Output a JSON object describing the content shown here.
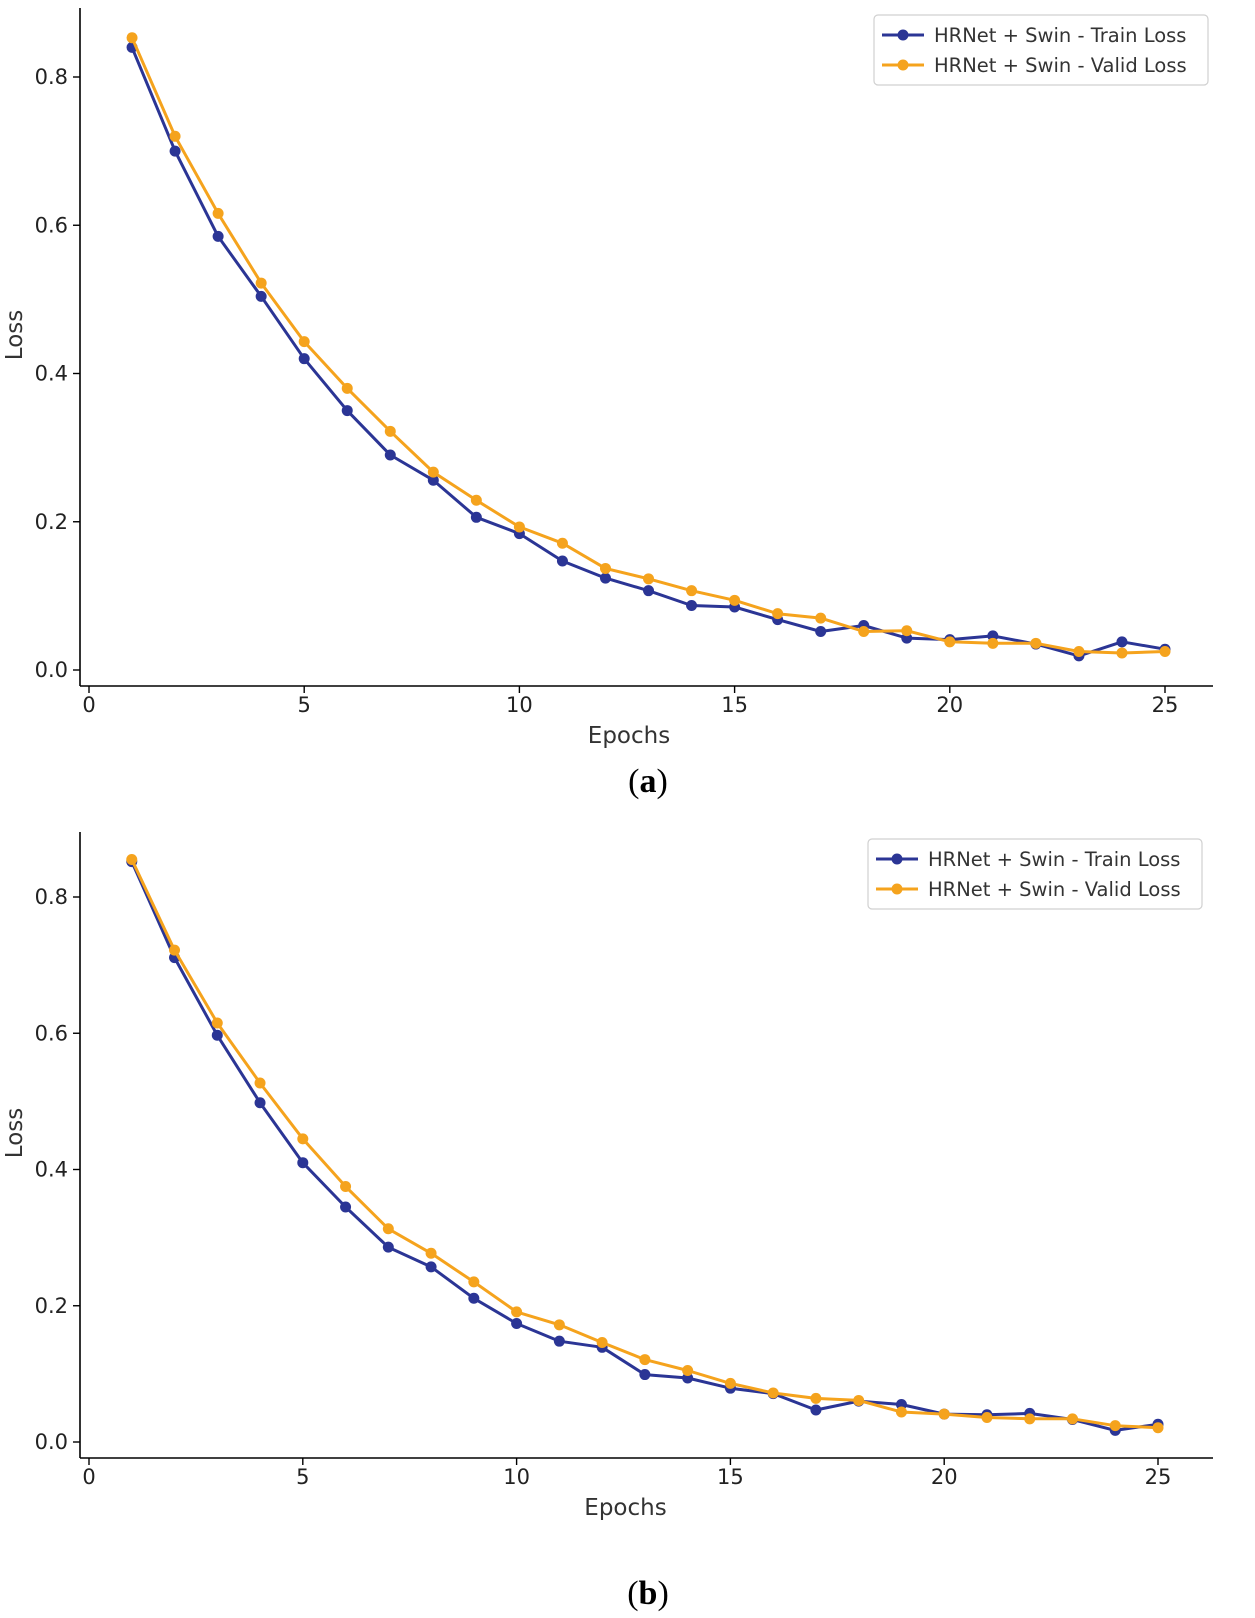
{
  "colors": {
    "train": "#2b3595",
    "valid": "#f5a31d",
    "axis": "#000000"
  },
  "chart_data": [
    {
      "type": "line",
      "panel": "a",
      "caption": "a",
      "xlabel": "Epochs",
      "ylabel": "Loss",
      "xlim": [
        -0.2,
        26
      ],
      "ylim": [
        -0.02,
        0.9
      ],
      "xticks": [
        0,
        5,
        10,
        15,
        20,
        25
      ],
      "yticks": [
        0.0,
        0.2,
        0.4,
        0.6,
        0.8
      ],
      "legend_position": "top-right",
      "x": [
        1,
        2,
        3,
        4,
        5,
        6,
        7,
        8,
        9,
        10,
        11,
        12,
        13,
        14,
        15,
        16,
        17,
        18,
        19,
        20,
        21,
        22,
        23,
        24,
        25
      ],
      "series": [
        {
          "name": "HRNet + Swin - Train Loss",
          "color_key": "train",
          "values": [
            0.84,
            0.7,
            0.585,
            0.504,
            0.42,
            0.35,
            0.29,
            0.256,
            0.206,
            0.184,
            0.147,
            0.124,
            0.107,
            0.087,
            0.085,
            0.068,
            0.052,
            0.06,
            0.043,
            0.041,
            0.046,
            0.035,
            0.019,
            0.038,
            0.028
          ]
        },
        {
          "name": "HRNet + Swin - Valid Loss",
          "color_key": "valid",
          "values": [
            0.853,
            0.72,
            0.616,
            0.522,
            0.443,
            0.38,
            0.322,
            0.267,
            0.229,
            0.193,
            0.171,
            0.137,
            0.123,
            0.107,
            0.094,
            0.076,
            0.07,
            0.052,
            0.053,
            0.038,
            0.036,
            0.036,
            0.025,
            0.023,
            0.025
          ]
        }
      ]
    },
    {
      "type": "line",
      "panel": "b",
      "caption": "b",
      "xlabel": "Epochs",
      "ylabel": "Loss",
      "xlim": [
        -0.2,
        26
      ],
      "ylim": [
        -0.02,
        0.9
      ],
      "xticks": [
        0,
        5,
        10,
        15,
        20,
        25
      ],
      "yticks": [
        0.0,
        0.2,
        0.4,
        0.6,
        0.8
      ],
      "legend_position": "top-right",
      "x": [
        1,
        2,
        3,
        4,
        5,
        6,
        7,
        8,
        9,
        10,
        11,
        12,
        13,
        14,
        15,
        16,
        17,
        18,
        19,
        20,
        21,
        22,
        23,
        24,
        25
      ],
      "series": [
        {
          "name": "HRNet + Swin - Train Loss",
          "color_key": "train",
          "values": [
            0.852,
            0.711,
            0.597,
            0.498,
            0.41,
            0.345,
            0.286,
            0.257,
            0.211,
            0.174,
            0.148,
            0.139,
            0.099,
            0.094,
            0.079,
            0.071,
            0.047,
            0.06,
            0.055,
            0.041,
            0.04,
            0.042,
            0.033,
            0.017,
            0.026
          ]
        },
        {
          "name": "HRNet + Swin - Valid Loss",
          "color_key": "valid",
          "values": [
            0.855,
            0.722,
            0.615,
            0.527,
            0.445,
            0.375,
            0.313,
            0.277,
            0.235,
            0.191,
            0.172,
            0.146,
            0.121,
            0.105,
            0.086,
            0.072,
            0.064,
            0.061,
            0.044,
            0.041,
            0.036,
            0.034,
            0.034,
            0.024,
            0.021
          ]
        }
      ]
    }
  ]
}
